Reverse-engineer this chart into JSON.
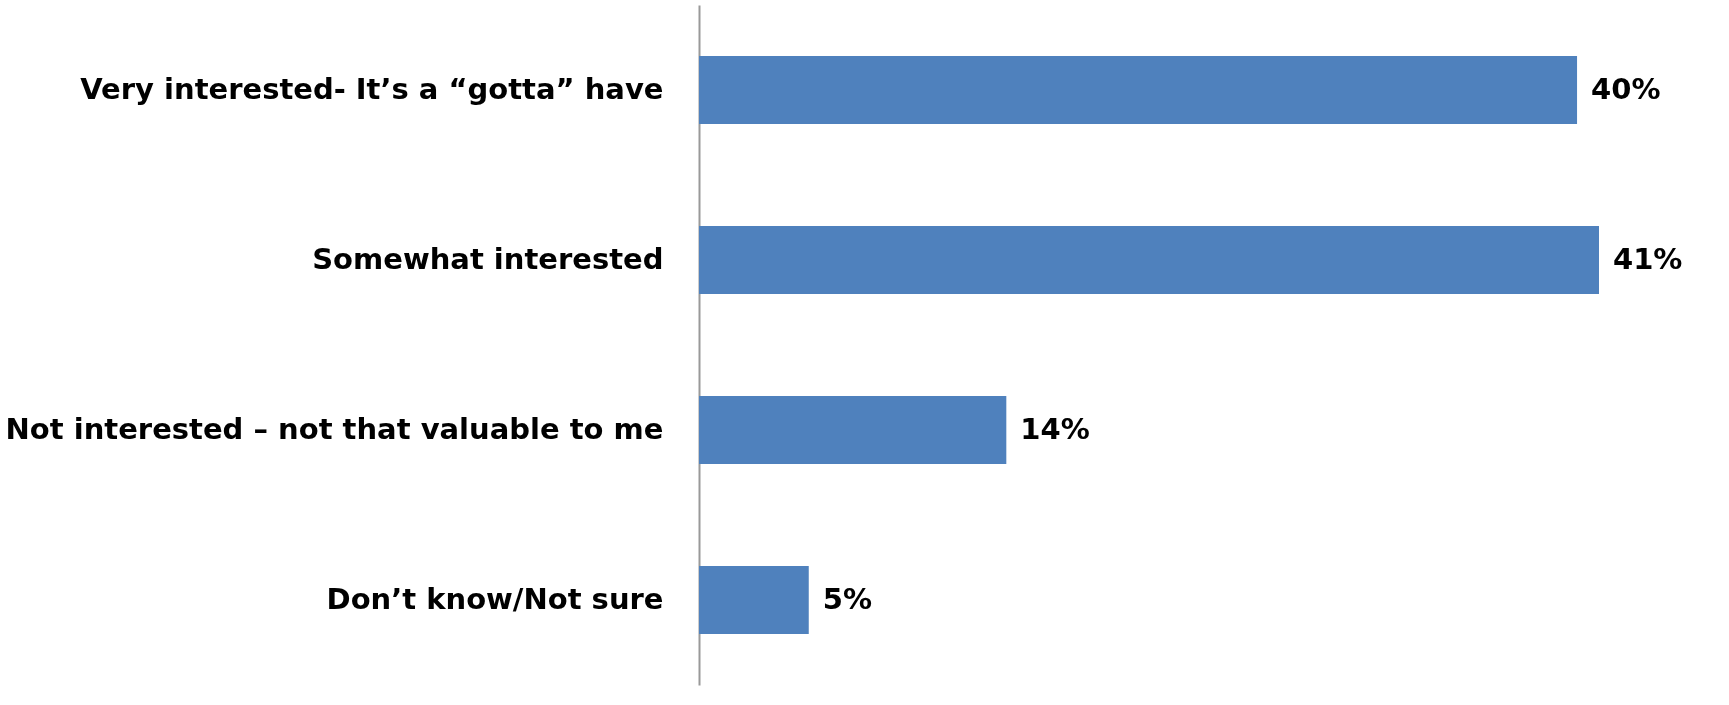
{
  "chart_data": {
    "type": "bar",
    "orientation": "horizontal",
    "categories": [
      "Very interested- It’s a “gotta” have",
      "Somewhat interested",
      "Not interested – not that valuable to me",
      "Don’t know/Not sure"
    ],
    "values": [
      40,
      41,
      14,
      5
    ],
    "color": "#4f81bd",
    "value_labels": [
      "40%",
      "41%",
      "14%",
      "5%"
    ]
  }
}
